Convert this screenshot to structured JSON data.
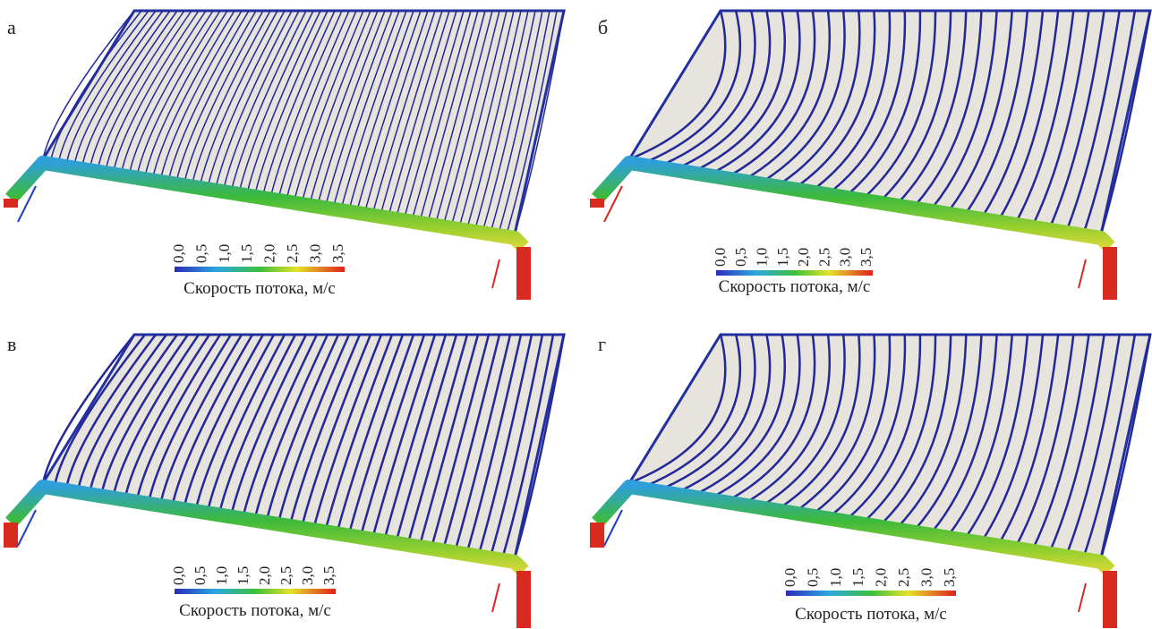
{
  "panels": [
    {
      "label": "а",
      "colorbar": {
        "ticks": [
          "0,0",
          "0,5",
          "1,0",
          "1,5",
          "2,0",
          "2,5",
          "3,0",
          "3,5"
        ],
        "title": "Скорость потока, м/с"
      }
    },
    {
      "label": "б",
      "colorbar": {
        "ticks": [
          "0,0",
          "0,5",
          "1,0",
          "1,5",
          "2,0",
          "2,5",
          "3,0",
          "3,5"
        ],
        "title": "Скорость потока, м/с"
      }
    },
    {
      "label": "в",
      "colorbar": {
        "ticks": [
          "0,0",
          "0,5",
          "1,0",
          "1,5",
          "2,0",
          "2,5",
          "3,0",
          "3,5"
        ],
        "title": "Скорость потока, м/с"
      }
    },
    {
      "label": "г",
      "colorbar": {
        "ticks": [
          "0,0",
          "0,5",
          "1,0",
          "1,5",
          "2,0",
          "2,5",
          "3,0",
          "3,5"
        ],
        "title": "Скорость потока, м/с"
      }
    }
  ]
}
